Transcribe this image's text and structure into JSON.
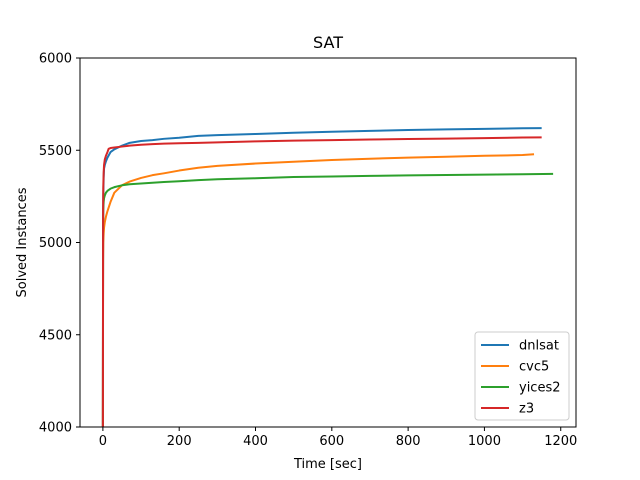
{
  "chart_data": {
    "type": "line",
    "title": "SAT",
    "xlabel": "Time [sec]",
    "ylabel": "Solved Instances",
    "xlim": [
      -60,
      1240
    ],
    "ylim": [
      4000,
      6000
    ],
    "xticks": [
      0,
      200,
      400,
      600,
      800,
      1000,
      1200
    ],
    "yticks": [
      4000,
      4500,
      5000,
      5500,
      6000
    ],
    "grid": false,
    "legend_position": "lower right",
    "series": [
      {
        "name": "dnlsat",
        "color": "#1f77b4",
        "x": [
          0,
          0.5,
          1,
          2,
          3,
          5,
          8,
          12,
          20,
          30,
          50,
          70,
          100,
          130,
          160,
          200,
          250,
          300,
          400,
          500,
          600,
          700,
          800,
          900,
          1000,
          1100,
          1150
        ],
        "y": [
          4000,
          5050,
          5250,
          5350,
          5400,
          5420,
          5440,
          5460,
          5490,
          5505,
          5525,
          5540,
          5550,
          5555,
          5562,
          5568,
          5578,
          5582,
          5588,
          5595,
          5600,
          5605,
          5610,
          5613,
          5616,
          5619,
          5620
        ]
      },
      {
        "name": "cvc5",
        "color": "#ff7f0e",
        "x": [
          0,
          0.5,
          1,
          2,
          3,
          5,
          8,
          12,
          20,
          30,
          50,
          70,
          100,
          130,
          160,
          200,
          250,
          300,
          400,
          500,
          600,
          700,
          800,
          900,
          1000,
          1100,
          1130
        ],
        "y": [
          4000,
          4900,
          5000,
          5050,
          5080,
          5110,
          5140,
          5170,
          5220,
          5270,
          5310,
          5330,
          5350,
          5365,
          5375,
          5390,
          5405,
          5415,
          5428,
          5438,
          5447,
          5454,
          5460,
          5465,
          5470,
          5474,
          5478
        ]
      },
      {
        "name": "yices2",
        "color": "#2ca02c",
        "x": [
          0,
          0.5,
          1,
          2,
          3,
          5,
          8,
          12,
          20,
          30,
          50,
          70,
          100,
          130,
          160,
          200,
          250,
          300,
          400,
          500,
          600,
          700,
          800,
          900,
          1000,
          1100,
          1180
        ],
        "y": [
          4000,
          5100,
          5180,
          5220,
          5240,
          5255,
          5270,
          5280,
          5292,
          5300,
          5310,
          5316,
          5320,
          5324,
          5328,
          5332,
          5338,
          5343,
          5348,
          5355,
          5358,
          5361,
          5364,
          5366,
          5368,
          5370,
          5372
        ]
      },
      {
        "name": "z3",
        "color": "#d62728",
        "x": [
          0,
          0.5,
          1,
          2,
          3,
          5,
          8,
          12,
          15,
          20,
          30,
          50,
          70,
          100,
          130,
          160,
          200,
          250,
          300,
          400,
          500,
          600,
          700,
          800,
          900,
          1000,
          1100,
          1150
        ],
        "y": [
          4000,
          5150,
          5300,
          5380,
          5420,
          5450,
          5470,
          5490,
          5508,
          5512,
          5515,
          5520,
          5525,
          5530,
          5533,
          5536,
          5538,
          5540,
          5543,
          5548,
          5552,
          5555,
          5558,
          5561,
          5563,
          5566,
          5569,
          5570
        ]
      }
    ]
  }
}
